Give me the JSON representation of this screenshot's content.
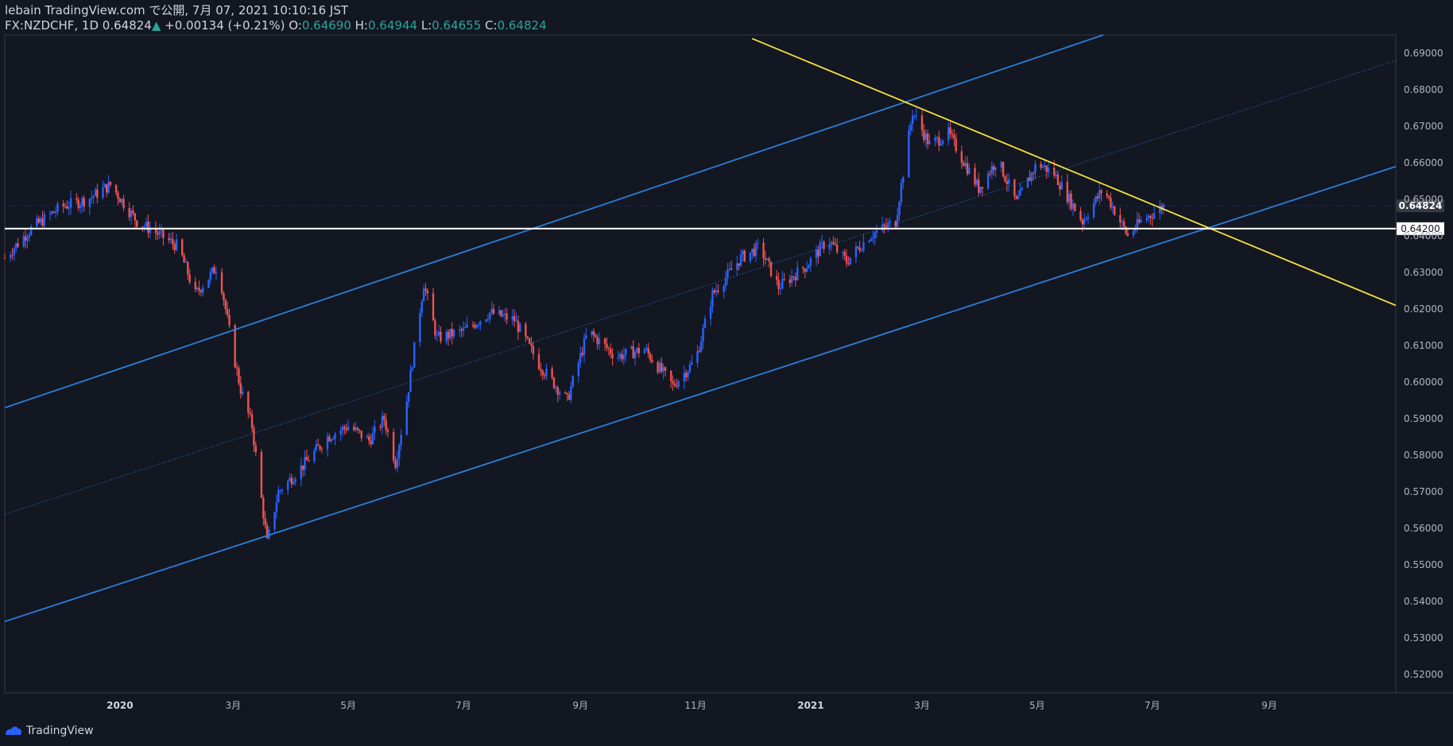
{
  "header": {
    "line1": "lebain TradingView.com で公開, 7月 07, 2021 10:10:16 JST",
    "symbol": "FX:NZDCHF, 1D",
    "last": "0.64824",
    "change": "+0.00134 (+0.21%)",
    "o_label": "O:",
    "o_value": "0.64690",
    "h_label": "H:",
    "h_value": "0.64944",
    "l_label": "L:",
    "l_value": "0.64655",
    "c_label": "C:",
    "c_value": "0.64824"
  },
  "footer": {
    "brand": "TradingView"
  },
  "colors": {
    "background": "#131722",
    "up": "#2962ff",
    "down": "#ef5350",
    "channel": "#2a7fd8",
    "trendline": "#f7e13a",
    "support": "#ffffff",
    "green": "#26a69a"
  },
  "chart_data": {
    "type": "candlestick",
    "symbol": "FX:NZDCHF",
    "interval": "1D",
    "ylim": [
      0.515,
      0.695
    ],
    "yticks": [
      "0.52000",
      "0.53000",
      "0.54000",
      "0.55000",
      "0.56000",
      "0.57000",
      "0.58000",
      "0.59000",
      "0.60000",
      "0.61000",
      "0.62000",
      "0.63000",
      "0.64000",
      "0.65000",
      "0.66000",
      "0.67000",
      "0.68000",
      "0.69000"
    ],
    "xticks": [
      {
        "label": "2020",
        "date": "2020-01-01",
        "bold": true
      },
      {
        "label": "3月",
        "date": "2020-03-01"
      },
      {
        "label": "5月",
        "date": "2020-05-01"
      },
      {
        "label": "7月",
        "date": "2020-07-01"
      },
      {
        "label": "9月",
        "date": "2020-09-01"
      },
      {
        "label": "11月",
        "date": "2020-11-01"
      },
      {
        "label": "2021",
        "date": "2021-01-01",
        "bold": true
      },
      {
        "label": "3月",
        "date": "2021-03-01"
      },
      {
        "label": "5月",
        "date": "2021-05-01"
      },
      {
        "label": "7月",
        "date": "2021-07-01"
      },
      {
        "label": "9月",
        "date": "2021-09-01"
      }
    ],
    "xrange": [
      "2019-11-01",
      "2021-11-07"
    ],
    "series": [
      {
        "date": "2019-11-01",
        "value": 0.634
      },
      {
        "date": "2019-11-15",
        "value": 0.642
      },
      {
        "date": "2019-12-01",
        "value": 0.648
      },
      {
        "date": "2019-12-15",
        "value": 0.65
      },
      {
        "date": "2019-12-27",
        "value": 0.654
      },
      {
        "date": "2020-01-10",
        "value": 0.644
      },
      {
        "date": "2020-01-20",
        "value": 0.641
      },
      {
        "date": "2020-02-01",
        "value": 0.637
      },
      {
        "date": "2020-02-10",
        "value": 0.624
      },
      {
        "date": "2020-02-22",
        "value": 0.632
      },
      {
        "date": "2020-03-01",
        "value": 0.608
      },
      {
        "date": "2020-03-05",
        "value": 0.598
      },
      {
        "date": "2020-03-11",
        "value": 0.588
      },
      {
        "date": "2020-03-19",
        "value": 0.556
      },
      {
        "date": "2020-03-25",
        "value": 0.57
      },
      {
        "date": "2020-04-05",
        "value": 0.576
      },
      {
        "date": "2020-04-20",
        "value": 0.585
      },
      {
        "date": "2020-05-01",
        "value": 0.588
      },
      {
        "date": "2020-05-12",
        "value": 0.584
      },
      {
        "date": "2020-05-20",
        "value": 0.59
      },
      {
        "date": "2020-05-26",
        "value": 0.578
      },
      {
        "date": "2020-06-01",
        "value": 0.595
      },
      {
        "date": "2020-06-10",
        "value": 0.627
      },
      {
        "date": "2020-06-17",
        "value": 0.612
      },
      {
        "date": "2020-07-01",
        "value": 0.614
      },
      {
        "date": "2020-07-15",
        "value": 0.619
      },
      {
        "date": "2020-07-28",
        "value": 0.617
      },
      {
        "date": "2020-08-10",
        "value": 0.605
      },
      {
        "date": "2020-08-25",
        "value": 0.595
      },
      {
        "date": "2020-09-05",
        "value": 0.614
      },
      {
        "date": "2020-09-20",
        "value": 0.607
      },
      {
        "date": "2020-10-05",
        "value": 0.609
      },
      {
        "date": "2020-10-20",
        "value": 0.599
      },
      {
        "date": "2020-11-01",
        "value": 0.606
      },
      {
        "date": "2020-11-10",
        "value": 0.624
      },
      {
        "date": "2020-11-25",
        "value": 0.634
      },
      {
        "date": "2020-12-05",
        "value": 0.637
      },
      {
        "date": "2020-12-15",
        "value": 0.626
      },
      {
        "date": "2020-12-30",
        "value": 0.632
      },
      {
        "date": "2021-01-10",
        "value": 0.639
      },
      {
        "date": "2021-01-20",
        "value": 0.633
      },
      {
        "date": "2021-02-01",
        "value": 0.64
      },
      {
        "date": "2021-02-15",
        "value": 0.644
      },
      {
        "date": "2021-02-24",
        "value": 0.674
      },
      {
        "date": "2021-03-05",
        "value": 0.665
      },
      {
        "date": "2021-03-15",
        "value": 0.668
      },
      {
        "date": "2021-03-31",
        "value": 0.653
      },
      {
        "date": "2021-04-10",
        "value": 0.661
      },
      {
        "date": "2021-04-20",
        "value": 0.649
      },
      {
        "date": "2021-05-01",
        "value": 0.66
      },
      {
        "date": "2021-05-10",
        "value": 0.657
      },
      {
        "date": "2021-05-25",
        "value": 0.644
      },
      {
        "date": "2021-06-05",
        "value": 0.653
      },
      {
        "date": "2021-06-18",
        "value": 0.64
      },
      {
        "date": "2021-06-25",
        "value": 0.644
      },
      {
        "date": "2021-07-07",
        "value": 0.6482
      }
    ],
    "annotations": [
      {
        "name": "channel-upper",
        "type": "line",
        "color": "#2a7fd8",
        "points": [
          [
            "2019-11-01",
            0.593
          ],
          [
            "2021-06-05",
            0.695
          ]
        ]
      },
      {
        "name": "channel-lower",
        "type": "line",
        "color": "#2a7fd8",
        "points": [
          [
            "2019-11-01",
            0.5345
          ],
          [
            "2021-11-07",
            0.659
          ]
        ]
      },
      {
        "name": "channel-median",
        "type": "dotted-line",
        "color": "#2a7fd8",
        "points": [
          [
            "2019-11-01",
            0.5638
          ],
          [
            "2021-11-07",
            0.688
          ]
        ]
      },
      {
        "name": "trendline",
        "type": "line",
        "color": "#f7e13a",
        "points": [
          [
            "2020-12-01",
            0.694
          ],
          [
            "2021-11-07",
            0.621
          ]
        ]
      },
      {
        "name": "support",
        "type": "hline",
        "color": "#ffffff",
        "value": 0.642,
        "label": "0.64200"
      }
    ],
    "last_price": {
      "value": 0.64824,
      "label": "0.64824"
    }
  }
}
